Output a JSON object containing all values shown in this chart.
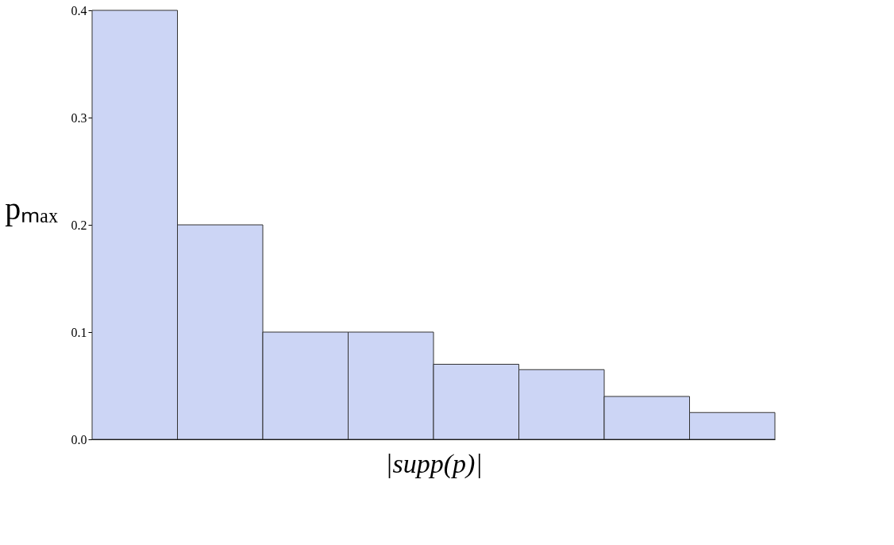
{
  "chart_data": {
    "type": "bar",
    "xlabel": "|supp(p)|",
    "ylabel": "pₘₐₓ",
    "categories": [
      null,
      null,
      null,
      null,
      null,
      null,
      null,
      null
    ],
    "values": [
      0.4,
      0.2,
      0.1,
      0.1,
      0.07,
      0.065,
      0.04,
      0.025
    ],
    "color": "#ccd5f5",
    "ylim": [
      0,
      0.4
    ],
    "yticks": [
      {
        "value": 0,
        "label": "0.0"
      },
      0.1,
      0.2,
      0.3,
      0.4
    ],
    "tick_labels": "y",
    "grid": false
  }
}
